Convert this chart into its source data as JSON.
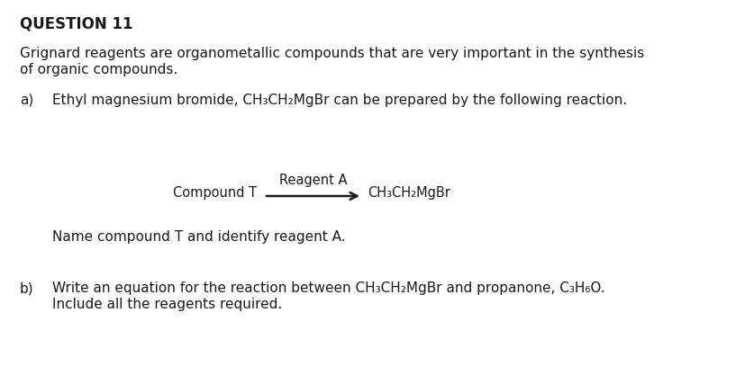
{
  "title": "QUESTION 11",
  "bg_color": "#ffffff",
  "text_color": "#1a1a1a",
  "intro_line1": "Grignard reagents are organometallic compounds that are very important in the synthesis",
  "intro_line2": "of organic compounds.",
  "part_a_label": "a)",
  "part_a_text": "Ethyl magnesium bromide, CH₃CH₂MgBr can be prepared by the following reaction.",
  "arrow_label_top": "Reagent A",
  "arrow_left_label": "Compound T",
  "arrow_right_label": "CH₃CH₂MgBr",
  "subpart_a_question": "Name compound T and identify reagent A.",
  "part_b_label": "b)",
  "part_b_line1": "Write an equation for the reaction between CH₃CH₂MgBr and propanone, C₃H₆O.",
  "part_b_line2": "Include all the reagents required.",
  "font_size_title": 12,
  "font_size_body": 11,
  "font_size_small": 10.5
}
